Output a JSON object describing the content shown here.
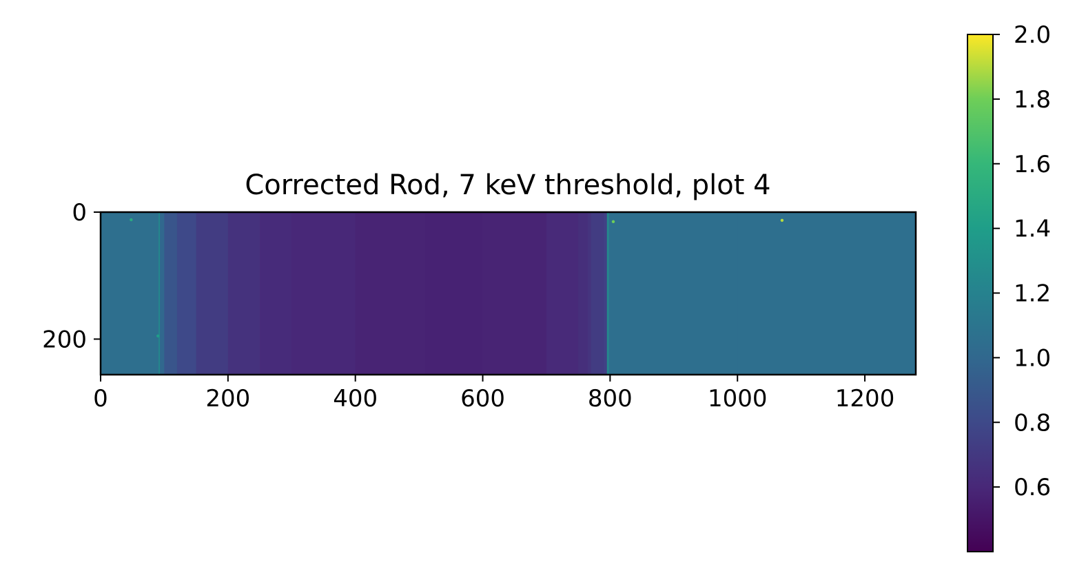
{
  "chart_data": {
    "type": "heatmap",
    "title": "Corrected Rod, 7 keV threshold, plot 4",
    "xlabel": "",
    "ylabel": "",
    "xlim": [
      0,
      1280
    ],
    "ylim": [
      256,
      0
    ],
    "x_ticks": [
      "0",
      "200",
      "400",
      "600",
      "800",
      "1000",
      "1200"
    ],
    "y_ticks": [
      "0",
      "200"
    ],
    "colormap": "viridis",
    "colorbar": {
      "vmin": 0.4,
      "vmax": 2.0,
      "ticks": [
        "0.6",
        "0.8",
        "1.0",
        "1.2",
        "1.4",
        "1.6",
        "1.8",
        "2.0"
      ]
    },
    "column_profile": {
      "x": [
        0,
        90,
        91,
        93,
        100,
        120,
        150,
        200,
        250,
        300,
        400,
        500,
        510,
        600,
        700,
        750,
        765,
        770,
        790,
        795,
        798,
        850,
        1000,
        1280
      ],
      "value": [
        1.05,
        1.05,
        1.25,
        1.0,
        0.88,
        0.8,
        0.72,
        0.66,
        0.62,
        0.6,
        0.58,
        0.58,
        0.57,
        0.58,
        0.61,
        0.64,
        0.67,
        0.72,
        0.75,
        1.25,
        1.05,
        1.05,
        1.05,
        1.04
      ]
    },
    "hot_pixels": [
      {
        "x": 48,
        "y": 12,
        "value": 1.5
      },
      {
        "x": 805,
        "y": 15,
        "value": 1.8
      },
      {
        "x": 1070,
        "y": 13,
        "value": 1.9
      },
      {
        "x": 90,
        "y": 195,
        "value": 1.4
      }
    ]
  }
}
